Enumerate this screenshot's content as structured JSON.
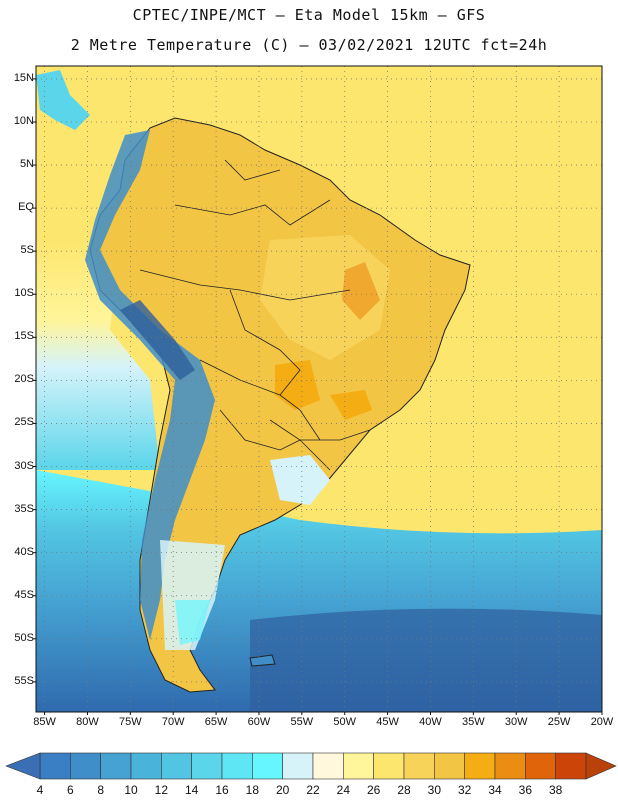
{
  "header": {
    "title_line1": "CPTEC/INPE/MCT –  Eta Model 15km – GFS",
    "title_line2": "2 Metre Temperature (C) – 03/02/2021 12UTC fct=24h"
  },
  "map": {
    "lat_labels": [
      "15N",
      "10N",
      "5N",
      "EQ",
      "5S",
      "10S",
      "15S",
      "20S",
      "25S",
      "30S",
      "35S",
      "40S",
      "45S",
      "50S",
      "55S"
    ],
    "lon_labels": [
      "85W",
      "80W",
      "75W",
      "70W",
      "65W",
      "60W",
      "55W",
      "50W",
      "45W",
      "40W",
      "35W",
      "30W",
      "25W",
      "20W"
    ],
    "grid": "dotted",
    "extent": {
      "lon": [
        -86,
        -20
      ],
      "lat": [
        -58.5,
        16.5
      ]
    }
  },
  "colorbar": {
    "labels": [
      "4",
      "6",
      "8",
      "10",
      "12",
      "14",
      "16",
      "18",
      "20",
      "22",
      "24",
      "26",
      "28",
      "30",
      "32",
      "34",
      "36",
      "38"
    ],
    "colors": [
      "#3a7fc4",
      "#3f8dc9",
      "#45a2d2",
      "#4ab3da",
      "#52c5e2",
      "#5ad5ea",
      "#5fe6f5",
      "#66f6ff",
      "#d6f3fa",
      "#fff8dc",
      "#fff59a",
      "#fde66e",
      "#f7d35a",
      "#f2c545",
      "#f4ad13",
      "#eb8c13",
      "#e0650a",
      "#cc4407"
    ],
    "low_arrow_color": "#3a6fb5",
    "high_arrow_color": "#b8420a"
  }
}
